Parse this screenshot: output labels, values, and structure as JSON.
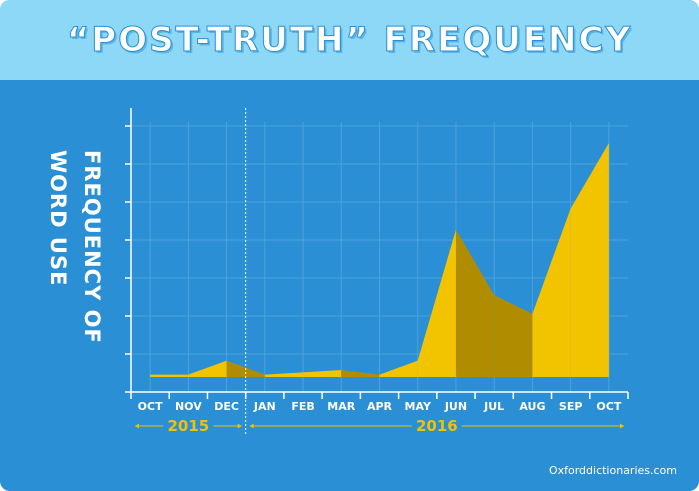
{
  "colors": {
    "background": "#2a8fd4",
    "header": "#8ed8f7",
    "fill_light": "#f2c400",
    "fill_dark": "#b08d00",
    "grid": "#4da3dd",
    "year": "#f2c100"
  },
  "header": {
    "title": "“POST-TRUTH” FREQUENCY"
  },
  "source": "Oxforddictionaries.com",
  "chart_data": {
    "type": "area",
    "title": "“POST-TRUTH” FREQUENCY",
    "ylabel_lines": [
      "FREQUENCY OF",
      "WORD USE"
    ],
    "categories": [
      "OCT",
      "NOV",
      "DEC",
      "JAN",
      "FEB",
      "MAR",
      "APR",
      "MAY",
      "JUN",
      "JUL",
      "AUG",
      "SEP",
      "OCT"
    ],
    "year_groups": [
      {
        "label": "2015",
        "start": 0,
        "end": 2
      },
      {
        "label": "2016",
        "start": 3,
        "end": 12
      }
    ],
    "values": [
      1,
      1,
      7,
      1,
      2,
      3,
      1,
      7,
      63,
      35,
      27,
      72,
      100
    ],
    "ylim": [
      0,
      100
    ],
    "grid": true,
    "legend": "none"
  }
}
